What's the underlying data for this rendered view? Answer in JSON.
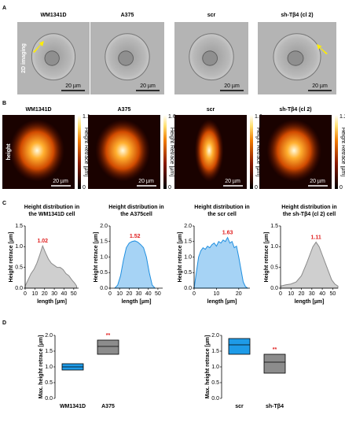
{
  "panels": {
    "A": {
      "label": "A",
      "row_label": "2D imaging",
      "images": [
        {
          "title": "WM1341D",
          "scale_bar": "20 µm"
        },
        {
          "title": "A375",
          "scale_bar": "20 µm"
        },
        {
          "title": "scr",
          "scale_bar": "20 µm"
        },
        {
          "title": "sh-Tβ4 (cl 2)",
          "scale_bar": "20 µm"
        }
      ]
    },
    "B": {
      "label": "B",
      "row_label": "height",
      "colorbar_label": "Height Retrace [µm]",
      "images": [
        {
          "title": "WM1341D",
          "scale_bar": "20 µm",
          "colorbar_max": 1.1,
          "colorbar_min": 0
        },
        {
          "title": "A375",
          "scale_bar": "20 µm",
          "colorbar_max": 1.6,
          "colorbar_min": 0
        },
        {
          "title": "scr",
          "scale_bar": "20 µm",
          "colorbar_max": 1.6,
          "colorbar_min": 0
        },
        {
          "title": "sh-Tβ4 (cl 2)",
          "scale_bar": "20 µm",
          "colorbar_max": 1.2,
          "colorbar_min": 0
        }
      ]
    },
    "C": {
      "label": "C"
    },
    "D": {
      "label": "D"
    }
  },
  "chart_data": [
    {
      "type": "area",
      "title": [
        "Height distribution in",
        "the WM1341D cell"
      ],
      "xlabel": "length [µm]",
      "ylabel": "Height retrace [µm]",
      "fill": "#cfcfcf",
      "stroke": "#8a8a8a",
      "x": [
        0,
        3,
        6,
        9,
        12,
        15,
        18,
        21,
        24,
        27,
        30,
        33,
        36,
        39,
        42,
        45,
        48,
        51,
        53
      ],
      "values": [
        0.05,
        0.2,
        0.35,
        0.45,
        0.6,
        0.8,
        1.02,
        0.85,
        0.7,
        0.6,
        0.55,
        0.5,
        0.5,
        0.45,
        0.35,
        0.3,
        0.2,
        0.12,
        0.05
      ],
      "peak": {
        "x": 18,
        "value": 1.02
      },
      "xlim": [
        0,
        55
      ],
      "xticks": [
        0,
        10,
        20,
        30,
        40,
        50
      ],
      "ylim": [
        0,
        1.5
      ],
      "yticks": [
        {
          "value": 0,
          "label": "0.0"
        },
        0.5,
        {
          "value": 1,
          "label": "1.0"
        },
        1.5
      ]
    },
    {
      "type": "area",
      "title": [
        "Height distribution in",
        "the A375cell"
      ],
      "xlabel": "length [µm]",
      "ylabel": "Height retrace [µm]",
      "fill": "#a6d3f5",
      "stroke": "#1f8fe0",
      "x": [
        5,
        8,
        11,
        14,
        17,
        20,
        23,
        26,
        29,
        32,
        35,
        38,
        41,
        44,
        47
      ],
      "values": [
        0,
        0.1,
        0.4,
        0.9,
        1.3,
        1.45,
        1.5,
        1.52,
        1.48,
        1.4,
        1.3,
        1.0,
        0.5,
        0.1,
        0
      ],
      "peak": {
        "x": 26,
        "value": 1.52
      },
      "xlim": [
        0,
        55
      ],
      "xticks": [
        0,
        10,
        20,
        30,
        40,
        50
      ],
      "ylim": [
        0,
        2
      ],
      "yticks": [
        {
          "value": 0,
          "label": "0.0"
        },
        0.5,
        {
          "value": 1,
          "label": "1.0"
        },
        1.5,
        {
          "value": 2,
          "label": "2.0"
        }
      ]
    },
    {
      "type": "area",
      "title": [
        "Height distribution in",
        "the scr cell"
      ],
      "xlabel": "length [µm]",
      "ylabel": "Height retrace [µm]",
      "fill": "#a6d3f5",
      "stroke": "#1f8fe0",
      "x": [
        0,
        1,
        2,
        3,
        4,
        5,
        6,
        7,
        8,
        9,
        10,
        11,
        12,
        13,
        14,
        15,
        16,
        17,
        18,
        19,
        20,
        21,
        22,
        23,
        24
      ],
      "values": [
        0,
        0.5,
        1.0,
        1.2,
        1.3,
        1.25,
        1.35,
        1.3,
        1.4,
        1.45,
        1.35,
        1.5,
        1.45,
        1.55,
        1.5,
        1.63,
        1.45,
        1.5,
        1.3,
        1.35,
        1.0,
        0.6,
        0.2,
        0.05,
        0
      ],
      "peak": {
        "x": 15,
        "value": 1.63
      },
      "xlim": [
        0,
        25
      ],
      "xticks": [
        0,
        10,
        20
      ],
      "ylim": [
        0,
        2
      ],
      "yticks": [
        {
          "value": 0,
          "label": "0.0"
        },
        0.5,
        {
          "value": 1,
          "label": "1.0"
        },
        1.5,
        {
          "value": 2,
          "label": "2.0"
        }
      ]
    },
    {
      "type": "area",
      "title": [
        "Height distribution in",
        "the sh-Tβ4 (cl 2) cell"
      ],
      "xlabel": "length [µm]",
      "ylabel": "Height retrace [µm]",
      "fill": "#cfcfcf",
      "stroke": "#8a8a8a",
      "x": [
        0,
        5,
        10,
        15,
        20,
        25,
        28,
        31,
        34,
        37,
        40,
        43,
        46,
        49,
        52,
        55
      ],
      "values": [
        0.05,
        0.08,
        0.1,
        0.15,
        0.3,
        0.6,
        0.8,
        1.0,
        1.11,
        1.0,
        0.8,
        0.6,
        0.4,
        0.2,
        0.1,
        0.05
      ],
      "peak": {
        "x": 34,
        "value": 1.11
      },
      "xlim": [
        0,
        55
      ],
      "xticks": [
        0,
        10,
        20,
        30,
        40,
        50
      ],
      "ylim": [
        0,
        1.5
      ],
      "yticks": [
        {
          "value": 0,
          "label": "0.0"
        },
        0.5,
        {
          "value": 1,
          "label": "1.0"
        },
        1.5
      ]
    },
    {
      "type": "floating-box",
      "ylabel": "Max. height retrace  [µm]",
      "categories": [
        "WM1341D",
        "A375"
      ],
      "boxes": [
        {
          "low": 0.9,
          "median": 1.0,
          "high": 1.1,
          "color": "#1e9be8"
        },
        {
          "low": 1.4,
          "median": 1.65,
          "high": 1.85,
          "color": "#8c8c8c"
        }
      ],
      "significance": {
        "index": 1,
        "label": "**"
      },
      "ylim": [
        0,
        2
      ],
      "yticks": [
        {
          "value": 0,
          "label": "0.0"
        },
        0.5,
        {
          "value": 1,
          "label": "1.0"
        },
        1.5,
        {
          "value": 2,
          "label": "2.0"
        }
      ]
    },
    {
      "type": "floating-box",
      "ylabel": "Max. height retrace  [µm]",
      "categories": [
        "scr",
        "sh-Tβ4"
      ],
      "boxes": [
        {
          "low": 1.4,
          "median": 1.7,
          "high": 1.9,
          "color": "#1e9be8"
        },
        {
          "low": 0.8,
          "median": 1.15,
          "high": 1.4,
          "color": "#8c8c8c"
        }
      ],
      "significance": {
        "index": 1,
        "label": "**"
      },
      "ylim": [
        0,
        2
      ],
      "yticks": [
        {
          "value": 0,
          "label": "0.0"
        },
        0.5,
        {
          "value": 1,
          "label": "1.0"
        },
        1.5,
        {
          "value": 2,
          "label": "2.0"
        }
      ]
    }
  ]
}
